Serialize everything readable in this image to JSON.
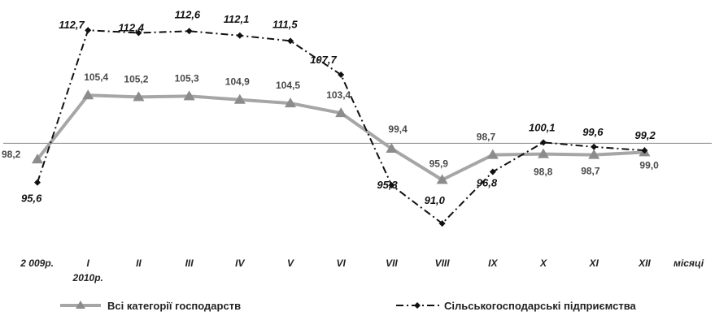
{
  "chart_data": {
    "type": "line",
    "categories": [
      "2 009р.",
      "I",
      "II",
      "III",
      "IV",
      "V",
      "VI",
      "VII",
      "VIII",
      "IX",
      "X",
      "XI",
      "XII"
    ],
    "category_sublabels": {
      "1": "2010р."
    },
    "x_axis_end_label": "місяці",
    "ylim": [
      89,
      115
    ],
    "baseline": 100,
    "grid": false,
    "legend_position": "bottom",
    "series": [
      {
        "key": "agri",
        "name": "Сільськогосподарські підприємства",
        "style": "dash-dot",
        "color": "#111111",
        "marker": "diamond",
        "values": [
          95.6,
          112.7,
          112.4,
          112.6,
          112.1,
          111.5,
          107.7,
          95.3,
          91.0,
          96.8,
          100.1,
          99.6,
          99.2
        ],
        "labels": [
          "95,6",
          "112,7",
          "112,4",
          "112,6",
          "112,1",
          "111,5",
          "107,7",
          "95,3",
          "91,0",
          "96,8",
          "100,1",
          "99,6",
          "99,2"
        ]
      },
      {
        "key": "all",
        "name": "Всі категорії господарств",
        "style": "solid",
        "color": "#a6a6a6",
        "marker": "triangle",
        "values": [
          98.2,
          105.4,
          105.2,
          105.3,
          104.9,
          104.5,
          103.4,
          99.4,
          95.9,
          98.7,
          98.8,
          98.7,
          99.0
        ],
        "labels": [
          "98,2",
          "105,4",
          "105,2",
          "105,3",
          "104,9",
          "104,5",
          "103,4",
          "99,4",
          "95,9",
          "98,7",
          "98,8",
          "98,7",
          "99,0"
        ]
      }
    ]
  }
}
